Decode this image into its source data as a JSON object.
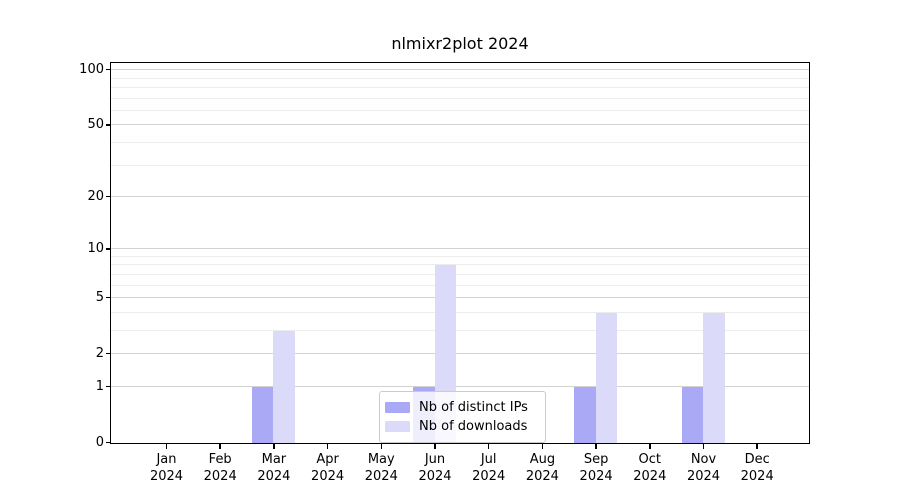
{
  "chart_data": {
    "type": "bar",
    "title": "nlmixr2plot 2024",
    "categories": [
      "Jan",
      "Feb",
      "Mar",
      "Apr",
      "May",
      "Jun",
      "Jul",
      "Aug",
      "Sep",
      "Oct",
      "Nov",
      "Dec"
    ],
    "x_year": "2024",
    "series": [
      {
        "name": "Nb of distinct IPs",
        "color": "#a9a9f6",
        "values": [
          0,
          0,
          1,
          0,
          0,
          1,
          0,
          0,
          1,
          0,
          1,
          0
        ]
      },
      {
        "name": "Nb of downloads",
        "color": "#dbdbf9",
        "values": [
          0,
          0,
          3,
          0,
          0,
          8,
          0,
          0,
          4,
          0,
          4,
          0
        ]
      }
    ],
    "yscale": "log1p",
    "ylim": [
      0,
      112
    ],
    "y_ticks": [
      0,
      1,
      2,
      5,
      10,
      20,
      50,
      100
    ],
    "y_minor_gridlines": [
      3,
      4,
      6,
      7,
      8,
      9,
      30,
      40,
      60,
      70,
      80,
      90
    ],
    "grid": true,
    "legend_position": "lower center",
    "colors": {
      "major_grid": "#d2d2d2",
      "minor_grid": "#ececec",
      "spine": "#000000",
      "background": "#ffffff"
    }
  }
}
